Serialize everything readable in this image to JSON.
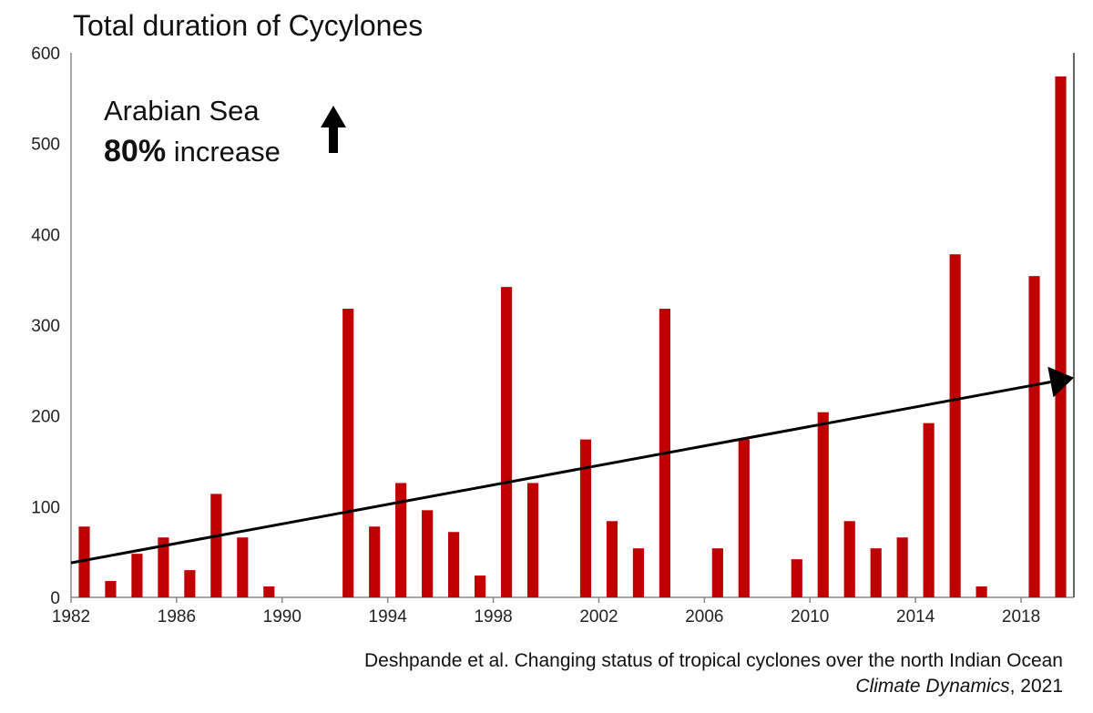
{
  "chart_data": {
    "type": "bar",
    "title": "Total duration of Cycylones",
    "xlabel": "",
    "ylabel": "",
    "ylim": [
      0,
      600
    ],
    "xlim": [
      1982,
      2020
    ],
    "yticks": [
      0,
      100,
      200,
      300,
      400,
      500,
      600
    ],
    "xticks": [
      1982,
      1986,
      1990,
      1994,
      1998,
      2002,
      2006,
      2010,
      2014,
      2018
    ],
    "grid": false,
    "bar_color": "#c00000",
    "x": [
      1982,
      1983,
      1984,
      1985,
      1986,
      1987,
      1988,
      1989,
      1992,
      1993,
      1994,
      1995,
      1996,
      1997,
      1998,
      1999,
      2001,
      2002,
      2003,
      2004,
      2006,
      2007,
      2009,
      2010,
      2011,
      2012,
      2013,
      2014,
      2015,
      2016,
      2018,
      2019
    ],
    "values": [
      78,
      18,
      48,
      66,
      30,
      114,
      66,
      12,
      318,
      78,
      126,
      96,
      72,
      24,
      342,
      126,
      174,
      84,
      54,
      318,
      54,
      174,
      42,
      204,
      84,
      54,
      66,
      192,
      378,
      12,
      354,
      574
    ],
    "trend": {
      "from": [
        1982,
        38
      ],
      "to": [
        2020,
        242
      ],
      "color": "#000000",
      "arrow": true
    },
    "annotation": {
      "region": "Arabian Sea",
      "percent": "80%",
      "word": "increase",
      "icon": "up-arrow-icon"
    }
  },
  "citation": {
    "line1": "Deshpande et al. Changing status of tropical cyclones over the north Indian Ocean",
    "journal": "Climate Dynamics",
    "year": ", 2021"
  }
}
